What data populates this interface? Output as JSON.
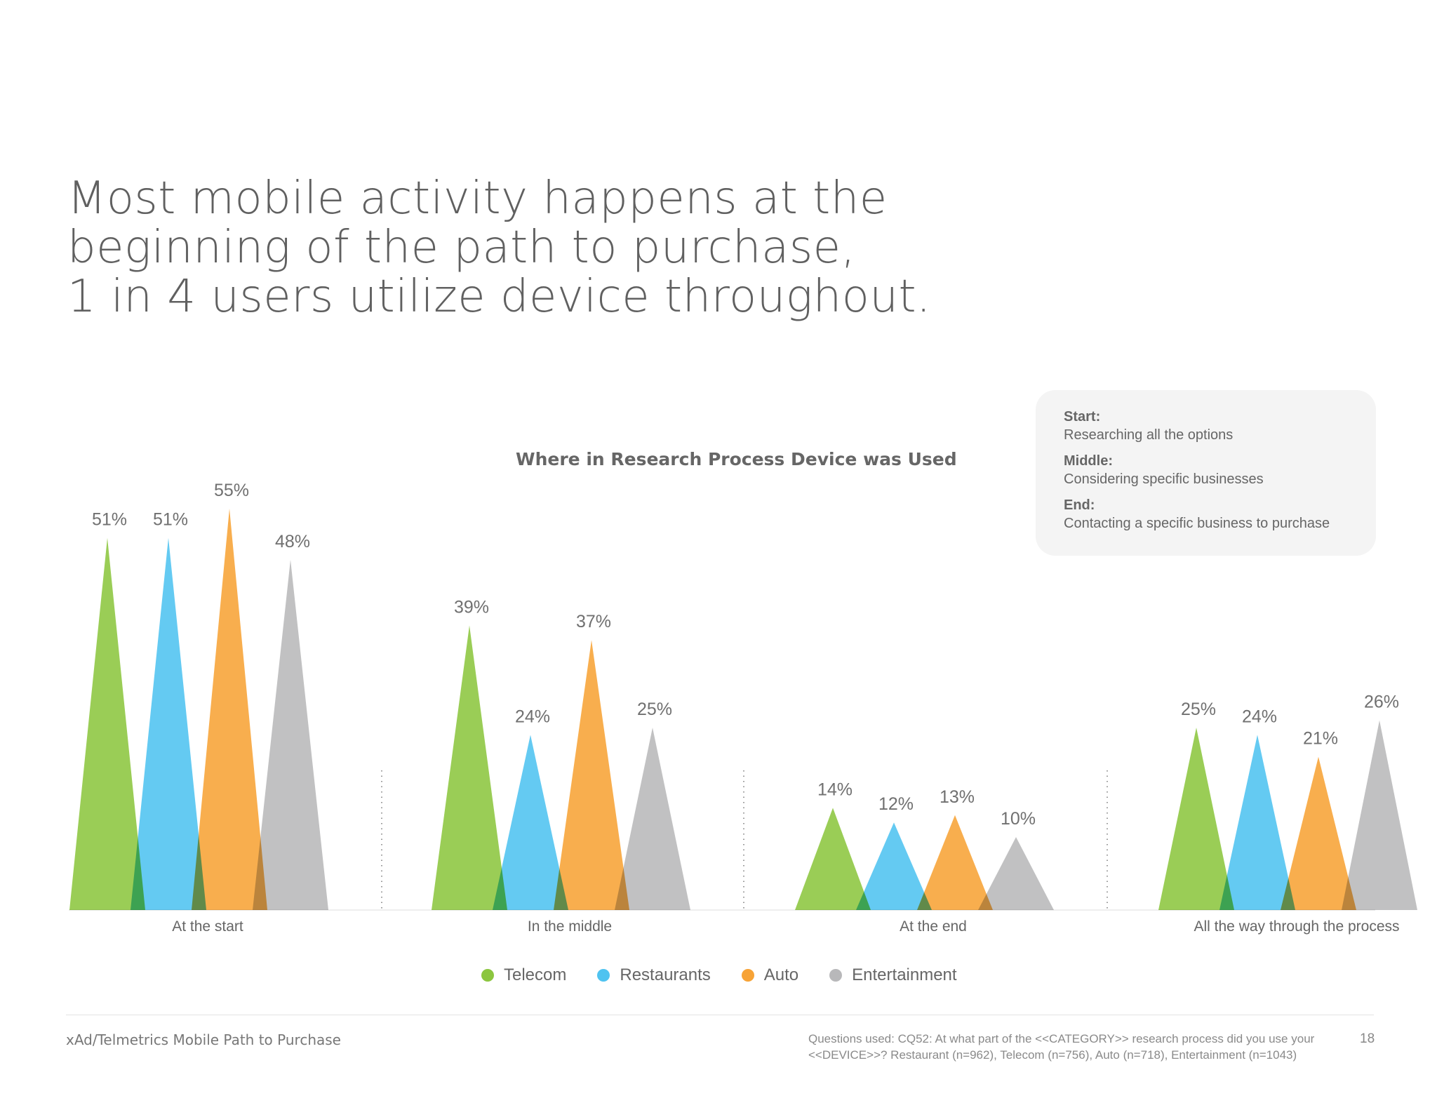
{
  "title_lines": [
    "Most mobile activity happens at the",
    "beginning of the path to purchase,",
    "1 in 4 users utilize device throughout."
  ],
  "info_box": {
    "start_label": "Start:",
    "start_text": "Researching all the options",
    "middle_label": "Middle:",
    "middle_text": "Considering specific businesses",
    "end_label": "End:",
    "end_text": "Contacting a specific business to purchase"
  },
  "legend": [
    "Telecom",
    "Restaurants",
    "Auto",
    "Entertainment"
  ],
  "footer": {
    "source": "xAd/Telmetrics Mobile Path to Purchase",
    "note_line1": "Questions used: CQ52: At what part of the <<CATEGORY>> research process did you use your",
    "note_line2": "<<DEVICE>>? Restaurant (n=962), Telecom (n=756), Auto (n=718), Entertainment (n=1043)",
    "page": "18"
  },
  "chart_data": {
    "type": "bar",
    "title": "Where in Research Process Device was Used",
    "categories": [
      "At the start",
      "In the middle",
      "At the end",
      "All the way through the process"
    ],
    "series": [
      {
        "name": "Telecom",
        "values": [
          51,
          39,
          14,
          25
        ],
        "color": "#8cc63f"
      },
      {
        "name": "Restaurants",
        "values": [
          51,
          24,
          12,
          24
        ],
        "color": "#4fc3f0"
      },
      {
        "name": "Auto",
        "values": [
          55,
          37,
          13,
          21
        ],
        "color": "#f7a336"
      },
      {
        "name": "Entertainment",
        "values": [
          48,
          25,
          10,
          26
        ],
        "color": "#b8b8ba"
      }
    ],
    "value_suffix": "%",
    "ylim": [
      0,
      55
    ],
    "xlabel": "",
    "ylabel": ""
  }
}
